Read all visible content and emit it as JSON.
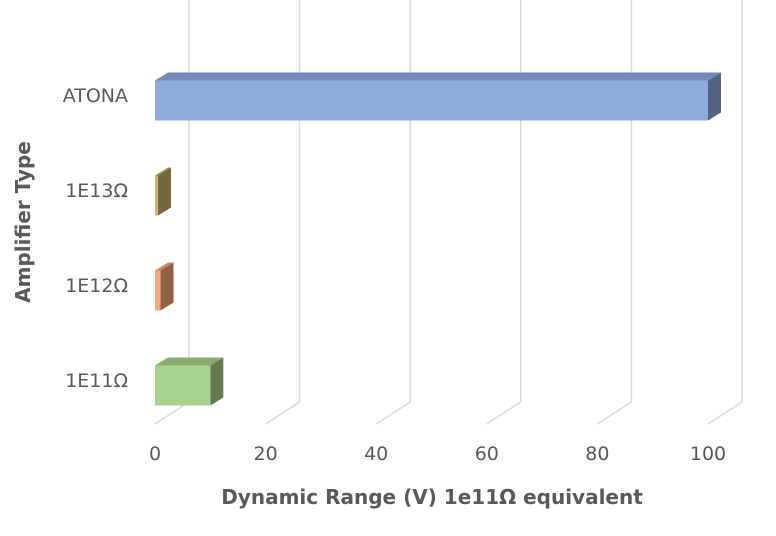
{
  "chart_data": {
    "type": "bar",
    "orientation": "horizontal",
    "style": "3d",
    "categories": [
      "ATONA",
      "1E13Ω",
      "1E12Ω",
      "1E11Ω"
    ],
    "values": [
      100,
      0.5,
      1,
      10
    ],
    "colors": [
      "#8faadc",
      "#c9b470",
      "#f4a77a",
      "#a9d18e"
    ],
    "xlabel": "Dynamic Range (V) 1e11Ω equivalent",
    "ylabel": "Amplifier Type",
    "xlim": [
      0,
      100
    ],
    "xticks": [
      "0",
      "20",
      "40",
      "60",
      "80",
      "100"
    ],
    "grid": true,
    "legend": "none"
  }
}
